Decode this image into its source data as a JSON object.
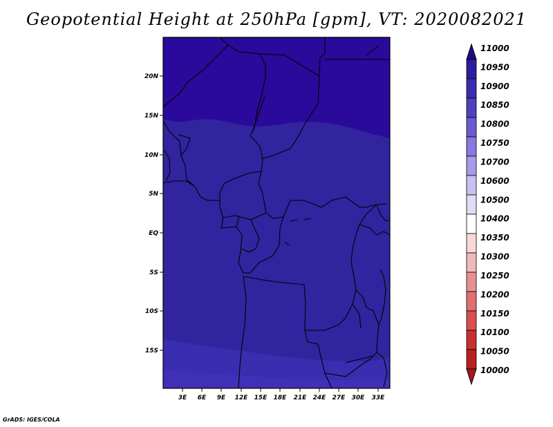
{
  "title": "Geopotential Height at 250hPa [gpm], VT: 2020082021",
  "footer": "GrADS: IGES/COLA",
  "map": {
    "lat_labels": [
      "20N",
      "15N",
      "10N",
      "5N",
      "EQ",
      "5S",
      "10S",
      "15S"
    ],
    "lon_labels": [
      "3E",
      "6E",
      "9E",
      "12E",
      "15E",
      "18E",
      "21E",
      "24E",
      "27E",
      "30E",
      "33E"
    ],
    "field_colors": {
      "north": "#2a0a9a",
      "central": "#31249e",
      "south": "#3a2db0",
      "far_south": "#4030b8"
    }
  },
  "colorbar": {
    "levels": [
      "11000",
      "10950",
      "10900",
      "10850",
      "10800",
      "10750",
      "10700",
      "10600",
      "10500",
      "10400",
      "10350",
      "10300",
      "10250",
      "10200",
      "10150",
      "10100",
      "10050",
      "10000"
    ],
    "colors": [
      "#1e0a8a",
      "#2a1ea0",
      "#3a2db0",
      "#5040c0",
      "#6a5ad0",
      "#8878e0",
      "#a89ae8",
      "#c8c0f0",
      "#e0dcf6",
      "#ffffff",
      "#f8d8d8",
      "#f0b8b8",
      "#e89090",
      "#e07070",
      "#d85050",
      "#c83030",
      "#b82020",
      "#a81818"
    ]
  }
}
